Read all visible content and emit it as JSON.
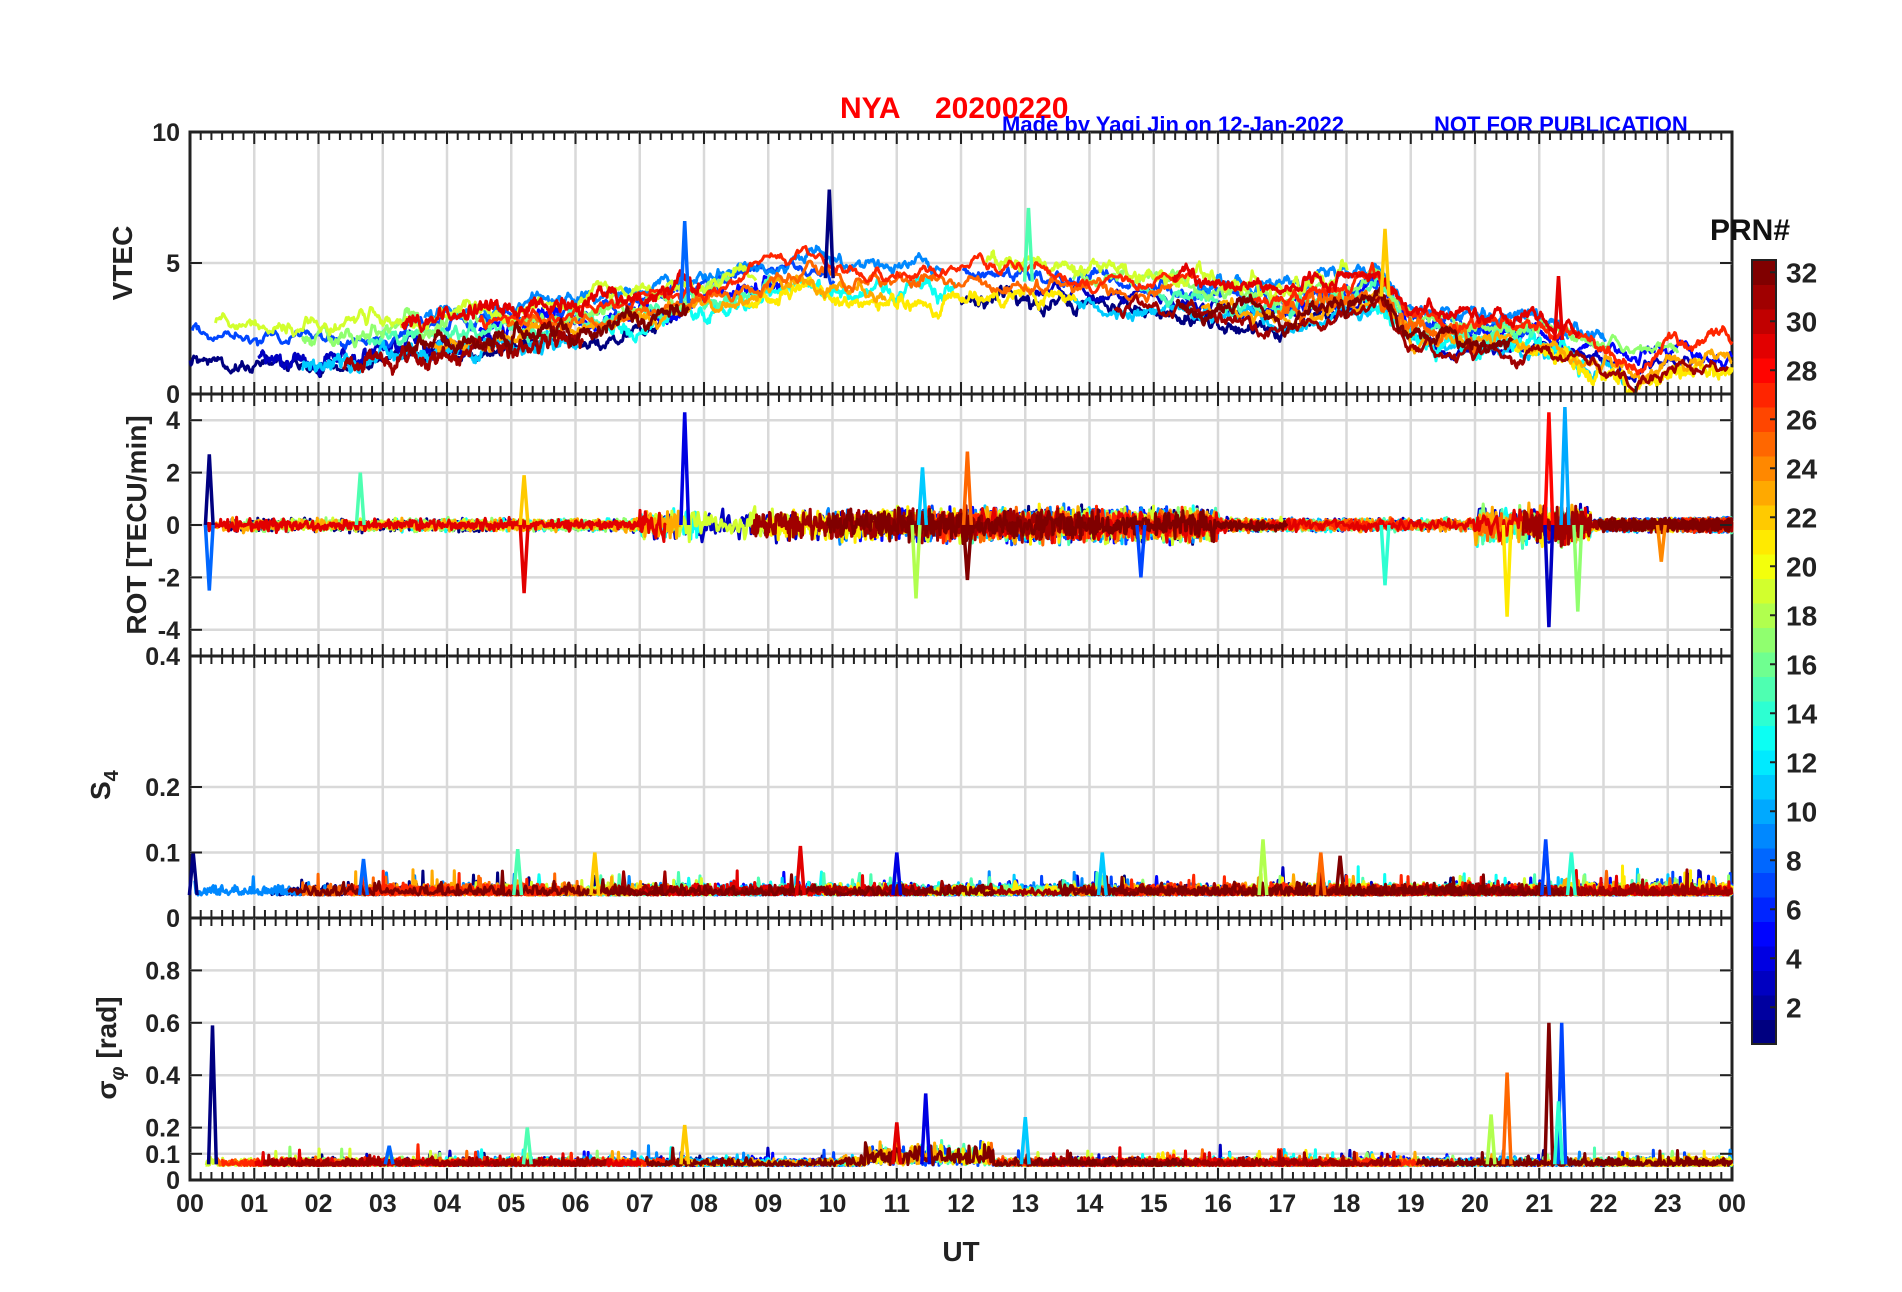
{
  "title": {
    "station": "NYA",
    "date": "20200220",
    "credit": "Made by Yaqi Jin on 12-Jan-2022",
    "notice": "NOT FOR PUBLICATION"
  },
  "colors": {
    "title": "#ff0000",
    "credit": "#0000ff",
    "axis": "#222222",
    "grid": "#d9d9d9"
  },
  "colorbar": {
    "label": "PRN#",
    "min": 1,
    "max": 32,
    "ticks": [
      "2",
      "4",
      "6",
      "8",
      "10",
      "12",
      "14",
      "16",
      "18",
      "20",
      "22",
      "24",
      "26",
      "28",
      "30",
      "32"
    ],
    "colormap": "jet"
  },
  "chart_data": [
    {
      "type": "line",
      "panel": "vtec",
      "ylabel": "VTEC",
      "xlabel": "",
      "ylim": [
        0,
        10
      ],
      "yticks": [
        "0",
        "5",
        "10"
      ],
      "xlim": [
        0,
        24
      ],
      "grid": true,
      "series_note_prn": [
        1,
        3,
        5,
        7,
        9,
        11,
        13,
        15,
        17,
        19,
        21,
        23,
        25,
        27,
        29,
        31,
        32
      ],
      "trend": {
        "hours": [
          0,
          2,
          4,
          6,
          8,
          9.5,
          10,
          11,
          12,
          13,
          14,
          15,
          16,
          17,
          18,
          18.5,
          19,
          20,
          21,
          22,
          22.5,
          23,
          24
        ],
        "values": [
          2.0,
          1.7,
          2.4,
          2.7,
          3.6,
          4.6,
          4.4,
          4.2,
          4.3,
          4.3,
          4.1,
          3.9,
          3.6,
          3.3,
          3.8,
          4.0,
          2.6,
          2.2,
          2.3,
          1.5,
          1.0,
          1.6,
          1.6
        ]
      },
      "peaks": [
        {
          "x": 9.95,
          "y": 7.8
        },
        {
          "x": 7.7,
          "y": 6.6
        },
        {
          "x": 13.05,
          "y": 7.1
        },
        {
          "x": 18.6,
          "y": 6.3
        },
        {
          "x": 21.3,
          "y": 4.5
        }
      ]
    },
    {
      "type": "line",
      "panel": "rot",
      "ylabel": "ROT [TECU/min]",
      "xlabel": "",
      "ylim": [
        -5,
        5
      ],
      "yticks": [
        "-4",
        "-2",
        "0",
        "2",
        "4"
      ],
      "xlim": [
        0,
        24
      ],
      "grid": true,
      "spikes": [
        {
          "x": 0.3,
          "y": 2.7
        },
        {
          "x": 0.3,
          "y": -2.5
        },
        {
          "x": 2.65,
          "y": 2.0
        },
        {
          "x": 5.2,
          "y": 1.9
        },
        {
          "x": 5.2,
          "y": -2.6
        },
        {
          "x": 7.7,
          "y": 4.3
        },
        {
          "x": 11.4,
          "y": 2.2
        },
        {
          "x": 11.3,
          "y": -2.8
        },
        {
          "x": 12.1,
          "y": 2.8
        },
        {
          "x": 12.1,
          "y": -2.1
        },
        {
          "x": 14.8,
          "y": -2.0
        },
        {
          "x": 18.6,
          "y": -2.3
        },
        {
          "x": 20.5,
          "y": -3.5
        },
        {
          "x": 21.15,
          "y": 4.3
        },
        {
          "x": 21.15,
          "y": -3.9
        },
        {
          "x": 21.4,
          "y": 4.5
        },
        {
          "x": 21.6,
          "y": -3.3
        },
        {
          "x": 22.9,
          "y": -1.4
        }
      ]
    },
    {
      "type": "line",
      "panel": "s4",
      "ylabel": "S4",
      "xlabel": "",
      "ylim": [
        0,
        0.4
      ],
      "yticks": [
        "0",
        "0.1",
        "0.2",
        "0.4"
      ],
      "xlim": [
        0,
        24
      ],
      "grid": true,
      "spikes": [
        {
          "x": 0.05,
          "y": 0.1
        },
        {
          "x": 2.7,
          "y": 0.09
        },
        {
          "x": 5.1,
          "y": 0.105
        },
        {
          "x": 6.3,
          "y": 0.1
        },
        {
          "x": 9.5,
          "y": 0.11
        },
        {
          "x": 11.0,
          "y": 0.1
        },
        {
          "x": 14.2,
          "y": 0.1
        },
        {
          "x": 16.7,
          "y": 0.12
        },
        {
          "x": 17.6,
          "y": 0.1
        },
        {
          "x": 17.9,
          "y": 0.095
        },
        {
          "x": 21.1,
          "y": 0.12
        },
        {
          "x": 21.5,
          "y": 0.1
        }
      ]
    },
    {
      "type": "line",
      "panel": "sigma_phi",
      "ylabel": "σ_φ [rad]",
      "xlabel": "UT",
      "ylim": [
        0,
        1
      ],
      "yticks": [
        "0",
        "0.1",
        "0.2",
        "0.4",
        "0.6",
        "0.8"
      ],
      "xlim": [
        0,
        24
      ],
      "xticks": [
        "00",
        "01",
        "02",
        "03",
        "04",
        "05",
        "06",
        "07",
        "08",
        "09",
        "10",
        "11",
        "12",
        "13",
        "14",
        "15",
        "16",
        "17",
        "18",
        "19",
        "20",
        "21",
        "22",
        "23",
        "00"
      ],
      "grid": true,
      "spikes": [
        {
          "x": 0.35,
          "y": 0.59
        },
        {
          "x": 3.1,
          "y": 0.13
        },
        {
          "x": 5.25,
          "y": 0.2
        },
        {
          "x": 7.7,
          "y": 0.21
        },
        {
          "x": 11.0,
          "y": 0.22
        },
        {
          "x": 11.45,
          "y": 0.33
        },
        {
          "x": 13.0,
          "y": 0.24
        },
        {
          "x": 20.25,
          "y": 0.25
        },
        {
          "x": 20.5,
          "y": 0.41
        },
        {
          "x": 21.15,
          "y": 0.6
        },
        {
          "x": 21.35,
          "y": 0.6
        },
        {
          "x": 21.3,
          "y": 0.3
        }
      ]
    }
  ]
}
